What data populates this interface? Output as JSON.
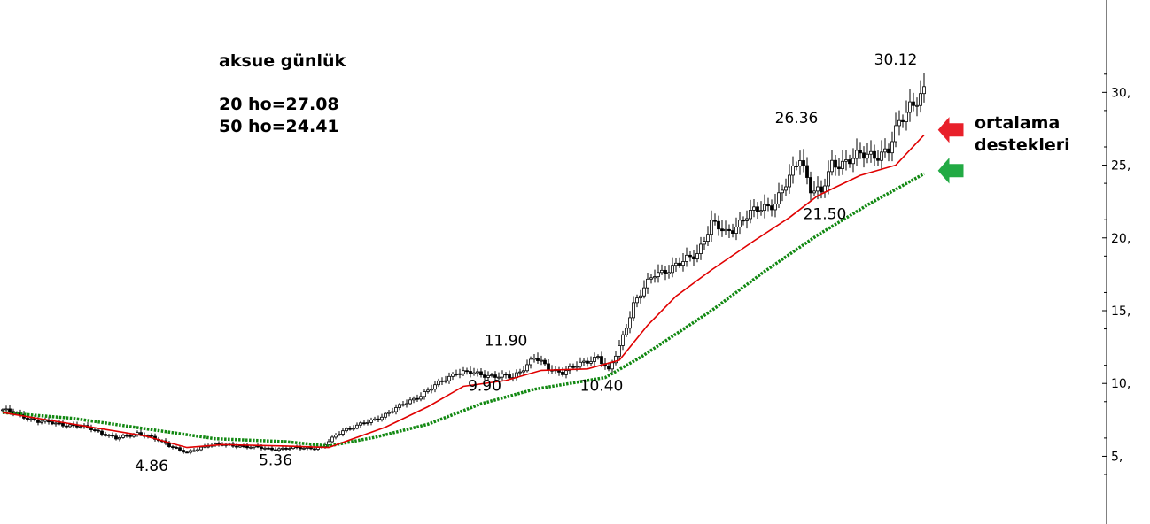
{
  "chart_data": {
    "type": "candlestick",
    "title": "aksue günlük",
    "indicators": [
      {
        "text": "20 ho=27.08",
        "name": "20 ho",
        "value": 27.08,
        "color": "#e00000",
        "style": "solid"
      },
      {
        "text": "50 ho=24.41",
        "name": "50 ho",
        "value": 24.41,
        "color": "#118811",
        "style": "dotted"
      }
    ],
    "ylim": [
      1.5,
      33
    ],
    "yticks": [
      {
        "value": 5,
        "label": "5,"
      },
      {
        "value": 10,
        "label": "10,"
      },
      {
        "value": 15,
        "label": "15,"
      },
      {
        "value": 20,
        "label": "20,"
      },
      {
        "value": 25,
        "label": "25,"
      },
      {
        "value": 30,
        "label": "30,"
      }
    ],
    "grid": false,
    "price_anchors": [
      [
        0,
        8.2
      ],
      [
        10,
        7.4
      ],
      [
        20,
        7.1
      ],
      [
        25,
        6.9
      ],
      [
        32,
        6.2
      ],
      [
        38,
        6.6
      ],
      [
        45,
        6.0
      ],
      [
        52,
        5.2
      ],
      [
        58,
        5.8
      ],
      [
        68,
        5.7
      ],
      [
        75,
        5.5
      ],
      [
        90,
        5.6
      ],
      [
        96,
        6.8
      ],
      [
        104,
        7.4
      ],
      [
        112,
        8.4
      ],
      [
        120,
        9.5
      ],
      [
        128,
        10.8
      ],
      [
        136,
        10.6
      ],
      [
        144,
        10.4
      ],
      [
        150,
        11.8
      ],
      [
        154,
        11.0
      ],
      [
        158,
        10.8
      ],
      [
        164,
        11.4
      ],
      [
        168,
        11.9
      ],
      [
        171,
        10.8
      ],
      [
        174,
        12.5
      ],
      [
        178,
        15.5
      ],
      [
        184,
        17.5
      ],
      [
        192,
        18.3
      ],
      [
        196,
        19.0
      ],
      [
        200,
        21.0
      ],
      [
        204,
        20.3
      ],
      [
        210,
        21.5
      ],
      [
        218,
        22.5
      ],
      [
        222,
        24.0
      ],
      [
        225,
        25.6
      ],
      [
        228,
        23.5
      ],
      [
        231,
        23.0
      ],
      [
        234,
        25.0
      ],
      [
        240,
        25.5
      ],
      [
        247,
        25.8
      ],
      [
        250,
        26.0
      ],
      [
        253,
        27.8
      ],
      [
        256,
        29.2
      ],
      [
        260,
        30.0
      ]
    ],
    "ma20_points": [
      [
        0,
        8.0
      ],
      [
        15,
        7.4
      ],
      [
        30,
        6.8
      ],
      [
        40,
        6.4
      ],
      [
        52,
        5.6
      ],
      [
        62,
        5.8
      ],
      [
        80,
        5.7
      ],
      [
        92,
        5.6
      ],
      [
        108,
        7.0
      ],
      [
        120,
        8.4
      ],
      [
        130,
        9.8
      ],
      [
        142,
        10.2
      ],
      [
        152,
        10.9
      ],
      [
        165,
        11.0
      ],
      [
        174,
        11.6
      ],
      [
        182,
        14.0
      ],
      [
        190,
        16.0
      ],
      [
        200,
        17.8
      ],
      [
        212,
        19.8
      ],
      [
        222,
        21.4
      ],
      [
        230,
        22.9
      ],
      [
        242,
        24.3
      ],
      [
        252,
        25.0
      ],
      [
        260,
        27.08
      ]
    ],
    "ma50_points": [
      [
        0,
        8.0
      ],
      [
        20,
        7.6
      ],
      [
        40,
        6.9
      ],
      [
        60,
        6.2
      ],
      [
        80,
        6.0
      ],
      [
        92,
        5.7
      ],
      [
        105,
        6.3
      ],
      [
        120,
        7.2
      ],
      [
        135,
        8.6
      ],
      [
        150,
        9.6
      ],
      [
        170,
        10.4
      ],
      [
        180,
        11.8
      ],
      [
        200,
        15.0
      ],
      [
        215,
        17.7
      ],
      [
        230,
        20.2
      ],
      [
        245,
        22.4
      ],
      [
        260,
        24.41
      ]
    ],
    "annotations": [
      {
        "text": "30.12",
        "x": 252,
        "y": 31.9
      },
      {
        "text": "26.36",
        "x": 224,
        "y": 27.9
      },
      {
        "text": "21.50",
        "x": 232,
        "y": 21.3
      },
      {
        "text": "11.90",
        "x": 142,
        "y": 12.6
      },
      {
        "text": "9.90",
        "x": 136,
        "y": 9.5
      },
      {
        "text": "10.40",
        "x": 169,
        "y": 9.5
      },
      {
        "text": "4.86",
        "x": 42,
        "y": 4.0
      },
      {
        "text": "5.36",
        "x": 77,
        "y": 4.4
      }
    ],
    "note": {
      "lines": [
        "ortalama",
        "destekleri"
      ],
      "arrows": [
        {
          "name": "ma20-arrow",
          "color": "#e8202a",
          "target_value": 27.3
        },
        {
          "name": "ma50-arrow",
          "color": "#22aa44",
          "target_value": 24.5
        }
      ]
    }
  }
}
